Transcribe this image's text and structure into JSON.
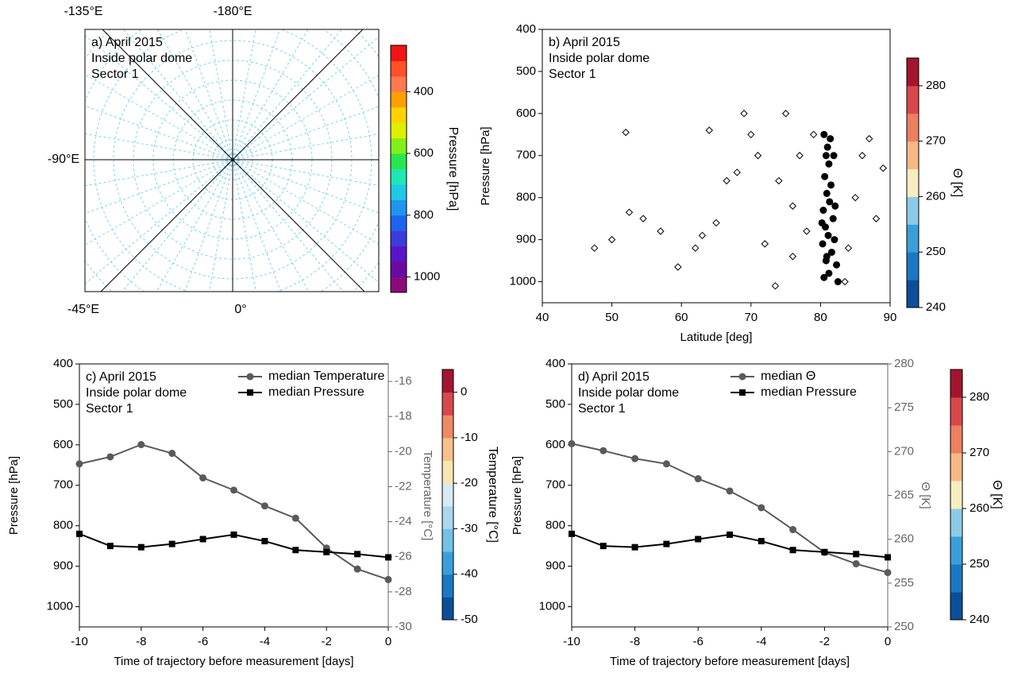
{
  "chart_data": [
    {
      "type": "map",
      "lines": [
        "a) April 2015",
        "Inside polar dome",
        "Sector 1"
      ],
      "lon_labels": [
        "-135°E",
        "-180°E",
        "-90°E",
        "-45°E",
        "0°"
      ],
      "colorbar": {
        "label": "Pressure [hPa]",
        "lim": [
          1050,
          250
        ],
        "ticks": [
          400,
          600,
          800,
          1000
        ],
        "colors": [
          "#8b0a7a",
          "#6a0aa0",
          "#5a14c8",
          "#3c3cdc",
          "#1e64f0",
          "#1e96f0",
          "#1ec8e6",
          "#1ee6b4",
          "#28e650",
          "#82f014",
          "#dcf000",
          "#ffd200",
          "#ffa000",
          "#ff7850",
          "#ff5028",
          "#f01414"
        ]
      }
    },
    {
      "type": "scatter",
      "lines": [
        "b) April 2015",
        "Inside polar dome",
        "Sector 1"
      ],
      "xlabel": "Latitude [deg]",
      "ylabel": "Pressure [hPa]",
      "xlim": [
        40,
        90
      ],
      "xticks": [
        40,
        50,
        60,
        70,
        80,
        90
      ],
      "ylim": [
        1050,
        400
      ],
      "yticks": [
        400,
        500,
        600,
        700,
        800,
        900,
        1000
      ],
      "series": [
        {
          "marker": "diamond",
          "color": "#000000",
          "x": [
            47.5,
            50,
            52,
            52.5,
            54.5,
            57,
            59.5,
            62,
            63,
            64,
            65,
            66.5,
            68,
            69,
            70,
            71,
            72,
            73.5,
            74,
            75,
            76,
            77,
            78,
            79,
            84,
            85,
            86,
            87,
            88,
            89,
            83.5,
            76
          ],
          "values": [
            920,
            900,
            645,
            835,
            850,
            880,
            965,
            920,
            890,
            640,
            860,
            760,
            740,
            600,
            650,
            700,
            910,
            1010,
            760,
            600,
            820,
            700,
            880,
            650,
            920,
            800,
            700,
            660,
            850,
            730,
            1000,
            940
          ]
        },
        {
          "marker": "dot",
          "color": "#000000",
          "x": [
            80.5,
            81,
            80.8,
            81.2,
            80.6,
            81.5,
            80.9,
            81.3,
            80.4,
            81.8,
            80.7,
            81.1,
            82,
            80.3,
            81.6,
            80.8,
            82.3,
            81.2,
            80.5,
            82.5,
            81.9,
            80.2,
            82.1,
            80.9,
            81.4
          ],
          "values": [
            650,
            680,
            700,
            720,
            750,
            770,
            790,
            810,
            830,
            850,
            870,
            890,
            900,
            910,
            930,
            950,
            960,
            980,
            990,
            1000,
            700,
            860,
            820,
            940,
            660
          ]
        }
      ],
      "colorbar": {
        "label": "Θ [K]",
        "lim": [
          240,
          285
        ],
        "ticks": [
          240,
          250,
          260,
          270,
          280
        ],
        "colors": [
          "#0b4f9a",
          "#1b78c4",
          "#3a9fd9",
          "#8ccbe8",
          "#f6eec0",
          "#f7b884",
          "#ec8060",
          "#d9474c",
          "#a5142e"
        ]
      }
    },
    {
      "type": "line",
      "lines": [
        "c) April 2015",
        "Inside polar dome",
        "Sector 1"
      ],
      "xlabel": "Time of trajectory before measurement [days]",
      "ylabel": "Pressure [hPa]",
      "y2label": "Temperature [°C]",
      "x": [
        -10,
        -9,
        -8,
        -7,
        -6,
        -5,
        -4,
        -3,
        -2,
        -1,
        0
      ],
      "xlim": [
        -10,
        0
      ],
      "xticks": [
        -10,
        -8,
        -6,
        -4,
        -2,
        0
      ],
      "ylim": [
        1050,
        400
      ],
      "yticks": [
        400,
        500,
        600,
        700,
        800,
        900,
        1000
      ],
      "y2lim": [
        -30,
        -15
      ],
      "y2ticks": [
        -30,
        -28,
        -26,
        -24,
        -22,
        -20,
        -18,
        -16
      ],
      "series": [
        {
          "name": "median Temperature",
          "color": "#5a5a5a",
          "marker": "circle",
          "axis": "y2",
          "values": [
            -20.7,
            -20.3,
            -19.6,
            -20.1,
            -21.5,
            -22.2,
            -23.1,
            -23.8,
            -25.5,
            -26.7,
            -27.3
          ]
        },
        {
          "name": "median Pressure",
          "color": "#000000",
          "marker": "square",
          "values": [
            820,
            850,
            853,
            845,
            833,
            822,
            838,
            860,
            865,
            870,
            878
          ]
        }
      ],
      "colorbar": {
        "label": "Temperature [°C]",
        "lim": [
          -50,
          5
        ],
        "ticks": [
          -50,
          -40,
          -30,
          -20,
          -10,
          0
        ],
        "colors": [
          "#0b4f9a",
          "#1b78c4",
          "#3a9fd9",
          "#72c1e6",
          "#a9d7ec",
          "#d6ebf1",
          "#f6e6b0",
          "#f7c08a",
          "#ef8a66",
          "#d9474c",
          "#a5142e"
        ]
      }
    },
    {
      "type": "line",
      "lines": [
        "d) April 2015",
        "Inside polar dome",
        "Sector 1"
      ],
      "xlabel": "Time of trajectory before measurement [days]",
      "ylabel": "Pressure [hPa]",
      "y2label": "Θ [K]",
      "x": [
        -10,
        -9,
        -8,
        -7,
        -6,
        -5,
        -4,
        -3,
        -2,
        -1,
        0
      ],
      "xlim": [
        -10,
        0
      ],
      "xticks": [
        -10,
        -8,
        -6,
        -4,
        -2,
        0
      ],
      "ylim": [
        1050,
        400
      ],
      "yticks": [
        400,
        500,
        600,
        700,
        800,
        900,
        1000
      ],
      "y2lim": [
        250,
        280
      ],
      "y2ticks": [
        250,
        255,
        260,
        265,
        270,
        275,
        280
      ],
      "series": [
        {
          "name": "median Θ",
          "color": "#5a5a5a",
          "marker": "circle",
          "axis": "y2",
          "values": [
            270.9,
            270.1,
            269.2,
            268.6,
            266.9,
            265.5,
            263.6,
            261.1,
            258.5,
            257.2,
            256.2
          ]
        },
        {
          "name": "median Pressure",
          "color": "#000000",
          "marker": "square",
          "values": [
            820,
            850,
            853,
            845,
            833,
            822,
            838,
            860,
            865,
            870,
            878
          ]
        }
      ],
      "colorbar": {
        "label": "Θ [K]",
        "lim": [
          240,
          285
        ],
        "ticks": [
          240,
          250,
          260,
          270,
          280
        ],
        "colors": [
          "#0b4f9a",
          "#1b78c4",
          "#3a9fd9",
          "#8ccbe8",
          "#f6eec0",
          "#f7b884",
          "#ec8060",
          "#d9474c",
          "#a5142e"
        ]
      }
    }
  ]
}
